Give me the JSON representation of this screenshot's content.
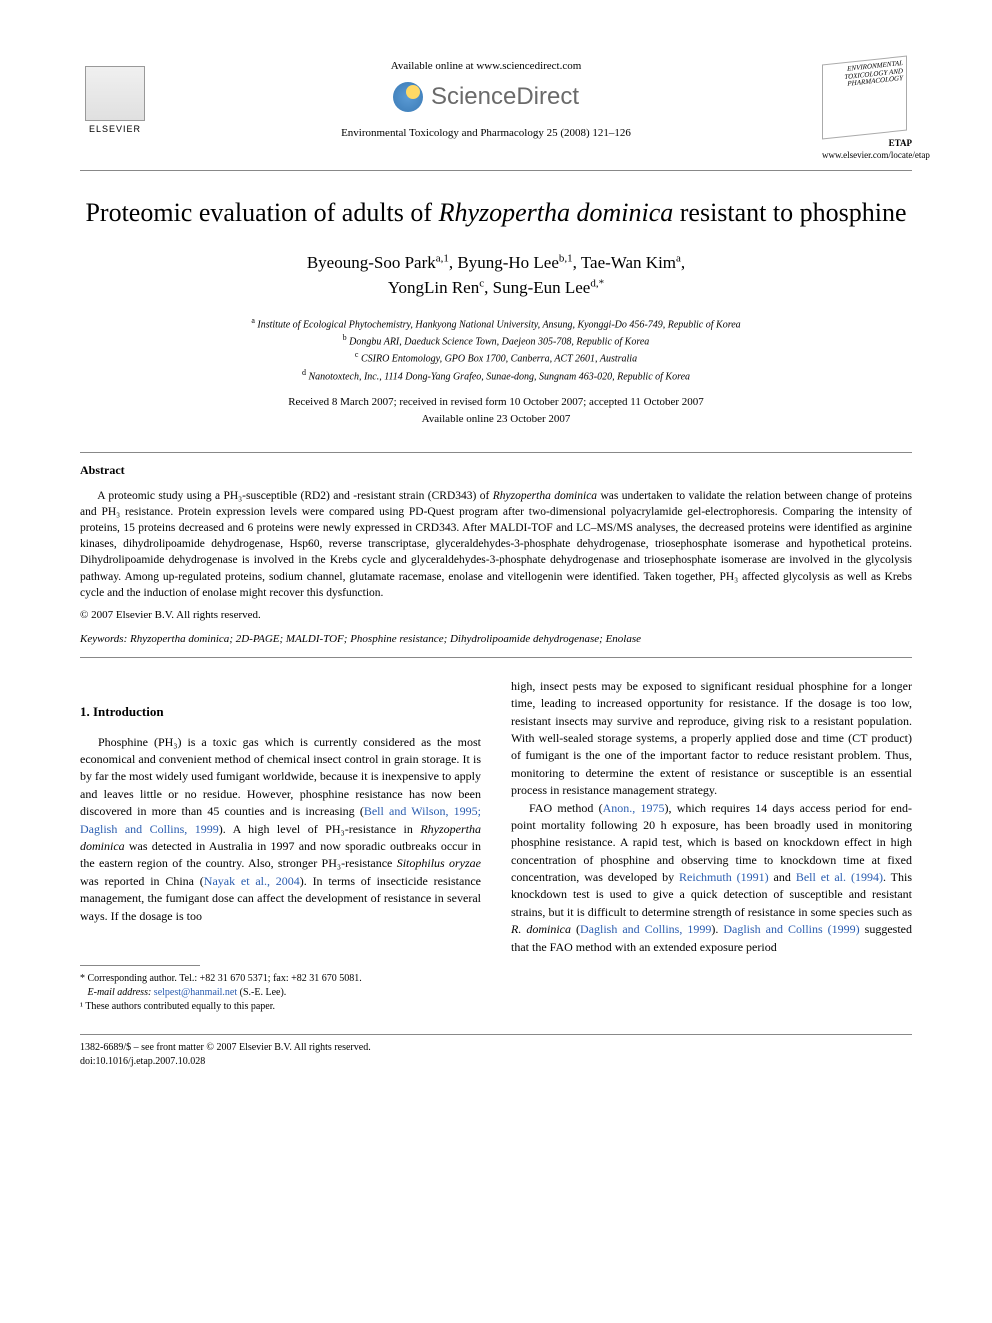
{
  "header": {
    "available_text": "Available online at www.sciencedirect.com",
    "sciencedirect": "ScienceDirect",
    "elsevier": "ELSEVIER",
    "journal_ref": "Environmental Toxicology and Pharmacology 25 (2008) 121–126",
    "cover_text": "ENVIRONMENTAL TOXICOLOGY AND PHARMACOLOGY",
    "etap": "ETAP",
    "journal_url": "www.elsevier.com/locate/etap"
  },
  "title": {
    "pre": "Proteomic evaluation of adults of ",
    "species": "Rhyzopertha dominica",
    "post": " resistant to phosphine"
  },
  "authors": {
    "a1_name": "Byeoung-Soo Park",
    "a1_sup": "a,1",
    "a2_name": "Byung-Ho Lee",
    "a2_sup": "b,1",
    "a3_name": "Tae-Wan Kim",
    "a3_sup": "a",
    "a4_name": "YongLin Ren",
    "a4_sup": "c",
    "a5_name": "Sung-Eun Lee",
    "a5_sup": "d,*"
  },
  "affiliations": {
    "a": "Institute of Ecological Phytochemistry, Hankyong National University, Ansung, Kyonggi-Do 456-749, Republic of Korea",
    "b": "Dongbu ARI, Daeduck Science Town, Daejeon 305-708, Republic of Korea",
    "c": "CSIRO Entomology, GPO Box 1700, Canberra, ACT 2601, Australia",
    "d": "Nanotoxtech, Inc., 1114 Dong-Yang Grafeo, Sunae-dong, Sungnam 463-020, Republic of Korea"
  },
  "dates": {
    "line1": "Received 8 March 2007; received in revised form 10 October 2007; accepted 11 October 2007",
    "line2": "Available online 23 October 2007"
  },
  "abstract": {
    "heading": "Abstract",
    "body_pre": "A proteomic study using a PH₃-susceptible (RD2) and -resistant strain (CRD343) of ",
    "body_species": "Rhyzopertha dominica",
    "body_post": " was undertaken to validate the relation between change of proteins and PH₃ resistance. Protein expression levels were compared using PD-Quest program after two-dimensional polyacrylamide gel-electrophoresis. Comparing the intensity of proteins, 15 proteins decreased and 6 proteins were newly expressed in CRD343. After MALDI-TOF and LC–MS/MS analyses, the decreased proteins were identified as arginine kinases, dihydrolipoamide dehydrogenase, Hsp60, reverse transcriptase, glyceraldehydes-3-phosphate dehydrogenase, triosephosphate isomerase and hypothetical proteins. Dihydrolipoamide dehydrogenase is involved in the Krebs cycle and glyceraldehydes-3-phosphate dehydrogenase and triosephosphate isomerase are involved in the glycolysis pathway. Among up-regulated proteins, sodium channel, glutamate racemase, enolase and vitellogenin were identified. Taken together, PH₃ affected glycolysis as well as Krebs cycle and the induction of enolase might recover this dysfunction.",
    "copyright": "© 2007 Elsevier B.V. All rights reserved."
  },
  "keywords": {
    "label": "Keywords:",
    "k_species": "Rhyzopertha dominica",
    "rest": "; 2D-PAGE; MALDI-TOF; Phosphine resistance; Dihydrolipoamide dehydrogenase; Enolase"
  },
  "intro": {
    "heading": "1. Introduction",
    "p1_a": "Phosphine (PH₃) is a toxic gas which is currently considered as the most economical and convenient method of chemical insect control in grain storage. It is by far the most widely used fumigant worldwide, because it is inexpensive to apply and leaves little or no residue. However, phosphine resistance has now been discovered in more than 45 counties and is increasing (",
    "p1_ref1": "Bell and Wilson, 1995; Daglish and Collins, 1999",
    "p1_b": "). A high level of PH₃-resistance in ",
    "p1_sp1": "Rhyzopertha dominica",
    "p1_c": " was detected in Australia in 1997 and now sporadic outbreaks occur in the eastern region of the country. Also, stronger PH₃-resistance ",
    "p1_sp2": "Sitophilus oryzae",
    "p1_d": " was reported in China (",
    "p1_ref2": "Nayak et al., 2004",
    "p1_e": "). In terms of insecticide resistance management, the fumigant dose can affect the development of resistance in several ways. If the dosage is too",
    "p1_cont": "high, insect pests may be exposed to significant residual phosphine for a longer time, leading to increased opportunity for resistance. If the dosage is too low, resistant insects may survive and reproduce, giving risk to a resistant population. With well-sealed storage systems, a properly applied dose and time (CT product) of fumigant is the one of the important factor to reduce resistant problem. Thus, monitoring to determine the extent of resistance or susceptible is an essential process in resistance management strategy.",
    "p2_a": "FAO method (",
    "p2_ref1": "Anon., 1975",
    "p2_b": "), which requires 14 days access period for end-point mortality following 20 h exposure, has been broadly used in monitoring phosphine resistance. A rapid test, which is based on knockdown effect in high concentration of phosphine and observing time to knockdown time at fixed concentration, was developed by ",
    "p2_ref2": "Reichmuth (1991)",
    "p2_c": " and ",
    "p2_ref3": "Bell et al. (1994)",
    "p2_d": ". This knockdown test is used to give a quick detection of susceptible and resistant strains, but it is difficult to determine strength of resistance in some species such as ",
    "p2_sp": "R. dominica",
    "p2_e": " (",
    "p2_ref4": "Daglish and Collins, 1999",
    "p2_f": "). ",
    "p2_ref5": "Daglish and Collins (1999)",
    "p2_g": " suggested that the FAO method with an extended exposure period"
  },
  "footnotes": {
    "corr_label": "* Corresponding author. Tel.: +82 31 670 5371; fax: +82 31 670 5081.",
    "email_label": "E-mail address:",
    "email": "selpest@hanmail.net",
    "email_post": " (S.-E. Lee).",
    "equal": "¹ These authors contributed equally to this paper."
  },
  "bottom": {
    "issn": "1382-6689/$ – see front matter © 2007 Elsevier B.V. All rights reserved.",
    "doi": "doi:10.1016/j.etap.2007.10.028"
  }
}
